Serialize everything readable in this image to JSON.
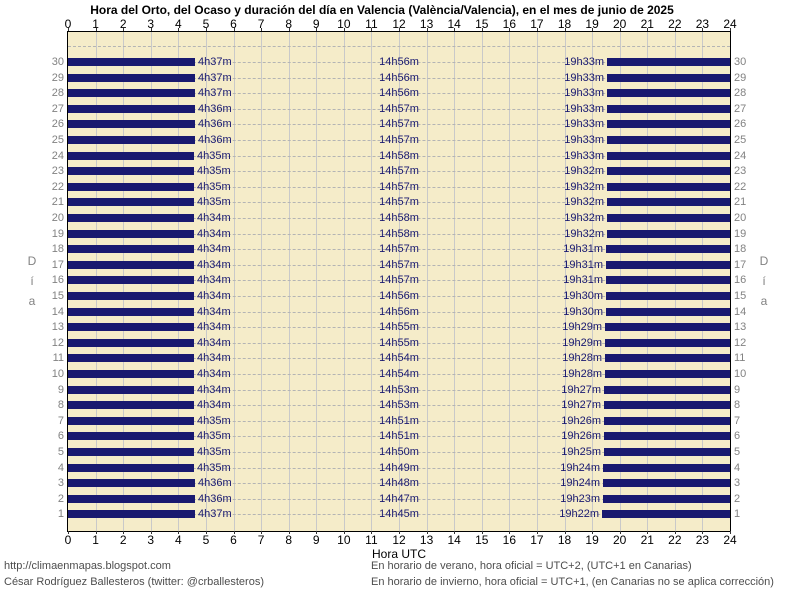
{
  "footer": {
    "left_line1": "http://climaenmapas.blogspot.com",
    "left_line2": "César Rodríguez Ballesteros (twitter: @crballesteros)",
    "right_line1": "En horario de verano, hora oficial = UTC+2, (UTC+1 en Canarias)",
    "right_line2": "En horario de invierno, hora oficial = UTC+1, (en Canarias no se aplica corrección)"
  },
  "chart_data": {
    "type": "bar",
    "subtype": "horizontal day/night span chart (night bars from 0h to sunrise and from sunset to 24h; daylight shown as cream background)",
    "title": "Hora del Orto, del Ocaso y duración del día en Valencia (València/Valencia), en el mes de junio de 2025",
    "xlabel": "Hora UTC",
    "ylabel": "Día",
    "xlim": [
      0,
      24
    ],
    "x_ticks": [
      0,
      1,
      2,
      3,
      4,
      5,
      6,
      7,
      8,
      9,
      10,
      11,
      12,
      13,
      14,
      15,
      16,
      17,
      18,
      19,
      20,
      21,
      22,
      23,
      24
    ],
    "days_range": [
      1,
      30
    ],
    "y_order": "day 30 at top, day 1 at bottom, labels on both sides",
    "grid": {
      "vertical": "solid at every hour",
      "horizontal": "dashed at every day row"
    },
    "legend_position": "none",
    "colors": {
      "night_bar": "#191970",
      "daylight_background": "#F5ECC9",
      "grid_vertical": "#C9C9C9",
      "grid_dashed": "#B4B4B4",
      "day_number": "#828282",
      "plot_border": "#000000"
    },
    "columns": [
      "day",
      "orto (sunrise, label at end of morning night bar)",
      "duración (day length, label centered at 12h)",
      "ocaso (sunset, label before evening night bar)"
    ],
    "days": [
      {
        "day": 1,
        "orto": "4h37m",
        "duracion": "14h45m",
        "ocaso": "19h22m"
      },
      {
        "day": 2,
        "orto": "4h36m",
        "duracion": "14h47m",
        "ocaso": "19h23m"
      },
      {
        "day": 3,
        "orto": "4h36m",
        "duracion": "14h48m",
        "ocaso": "19h24m"
      },
      {
        "day": 4,
        "orto": "4h35m",
        "duracion": "14h49m",
        "ocaso": "19h24m"
      },
      {
        "day": 5,
        "orto": "4h35m",
        "duracion": "14h50m",
        "ocaso": "19h25m"
      },
      {
        "day": 6,
        "orto": "4h35m",
        "duracion": "14h51m",
        "ocaso": "19h26m"
      },
      {
        "day": 7,
        "orto": "4h35m",
        "duracion": "14h51m",
        "ocaso": "19h26m"
      },
      {
        "day": 8,
        "orto": "4h34m",
        "duracion": "14h53m",
        "ocaso": "19h27m"
      },
      {
        "day": 9,
        "orto": "4h34m",
        "duracion": "14h53m",
        "ocaso": "19h27m"
      },
      {
        "day": 10,
        "orto": "4h34m",
        "duracion": "14h54m",
        "ocaso": "19h28m"
      },
      {
        "day": 11,
        "orto": "4h34m",
        "duracion": "14h54m",
        "ocaso": "19h28m"
      },
      {
        "day": 12,
        "orto": "4h34m",
        "duracion": "14h55m",
        "ocaso": "19h29m"
      },
      {
        "day": 13,
        "orto": "4h34m",
        "duracion": "14h55m",
        "ocaso": "19h29m"
      },
      {
        "day": 14,
        "orto": "4h34m",
        "duracion": "14h56m",
        "ocaso": "19h30m"
      },
      {
        "day": 15,
        "orto": "4h34m",
        "duracion": "14h56m",
        "ocaso": "19h30m"
      },
      {
        "day": 16,
        "orto": "4h34m",
        "duracion": "14h57m",
        "ocaso": "19h31m"
      },
      {
        "day": 17,
        "orto": "4h34m",
        "duracion": "14h57m",
        "ocaso": "19h31m"
      },
      {
        "day": 18,
        "orto": "4h34m",
        "duracion": "14h57m",
        "ocaso": "19h31m"
      },
      {
        "day": 19,
        "orto": "4h34m",
        "duracion": "14h58m",
        "ocaso": "19h32m"
      },
      {
        "day": 20,
        "orto": "4h34m",
        "duracion": "14h58m",
        "ocaso": "19h32m"
      },
      {
        "day": 21,
        "orto": "4h35m",
        "duracion": "14h57m",
        "ocaso": "19h32m"
      },
      {
        "day": 22,
        "orto": "4h35m",
        "duracion": "14h57m",
        "ocaso": "19h32m"
      },
      {
        "day": 23,
        "orto": "4h35m",
        "duracion": "14h57m",
        "ocaso": "19h32m"
      },
      {
        "day": 24,
        "orto": "4h35m",
        "duracion": "14h58m",
        "ocaso": "19h33m"
      },
      {
        "day": 25,
        "orto": "4h36m",
        "duracion": "14h57m",
        "ocaso": "19h33m"
      },
      {
        "day": 26,
        "orto": "4h36m",
        "duracion": "14h57m",
        "ocaso": "19h33m"
      },
      {
        "day": 27,
        "orto": "4h36m",
        "duracion": "14h57m",
        "ocaso": "19h33m"
      },
      {
        "day": 28,
        "orto": "4h37m",
        "duracion": "14h56m",
        "ocaso": "19h33m"
      },
      {
        "day": 29,
        "orto": "4h37m",
        "duracion": "14h56m",
        "ocaso": "19h33m"
      },
      {
        "day": 30,
        "orto": "4h37m",
        "duracion": "14h56m",
        "ocaso": "19h33m"
      }
    ]
  }
}
